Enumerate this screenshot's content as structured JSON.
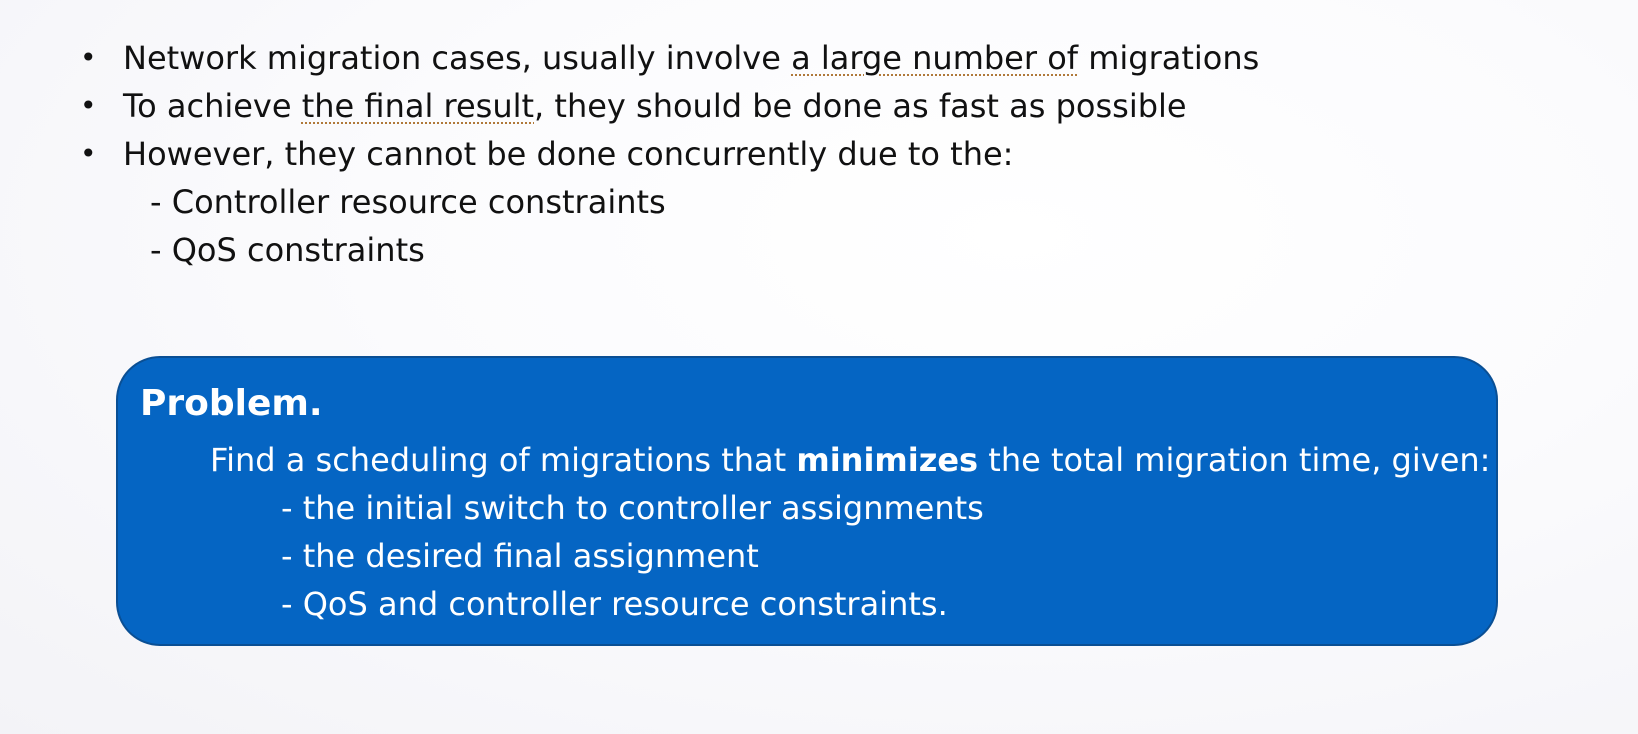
{
  "bullets": [
    {
      "marker": "•",
      "before": "Network migration cases, usually involve ",
      "underlined": "a large number of",
      "after": " migrations"
    },
    {
      "marker": "•",
      "before": "To achieve ",
      "underlined": "the final result",
      "after": ", they should be done as fast as possible"
    },
    {
      "marker": "•",
      "text": "However, they cannot be done concurrently due to the:"
    }
  ],
  "sub_items": [
    "- Controller resource constraints",
    "- QoS constraints"
  ],
  "problem": {
    "title": "Problem.",
    "desc_before": "Find a scheduling of migrations that ",
    "desc_bold": "minimizes",
    "desc_after": " the total migration time, given:",
    "conditions": [
      "- the initial switch to controller assignments",
      "- the desired final assignment",
      "- QoS and controller resource constraints."
    ]
  },
  "colors": {
    "box_fill": "#0565c3",
    "box_border": "#0a4f94",
    "text": "#111111",
    "box_text": "#ffffff",
    "spellcheck_underline": "#b0793a"
  }
}
